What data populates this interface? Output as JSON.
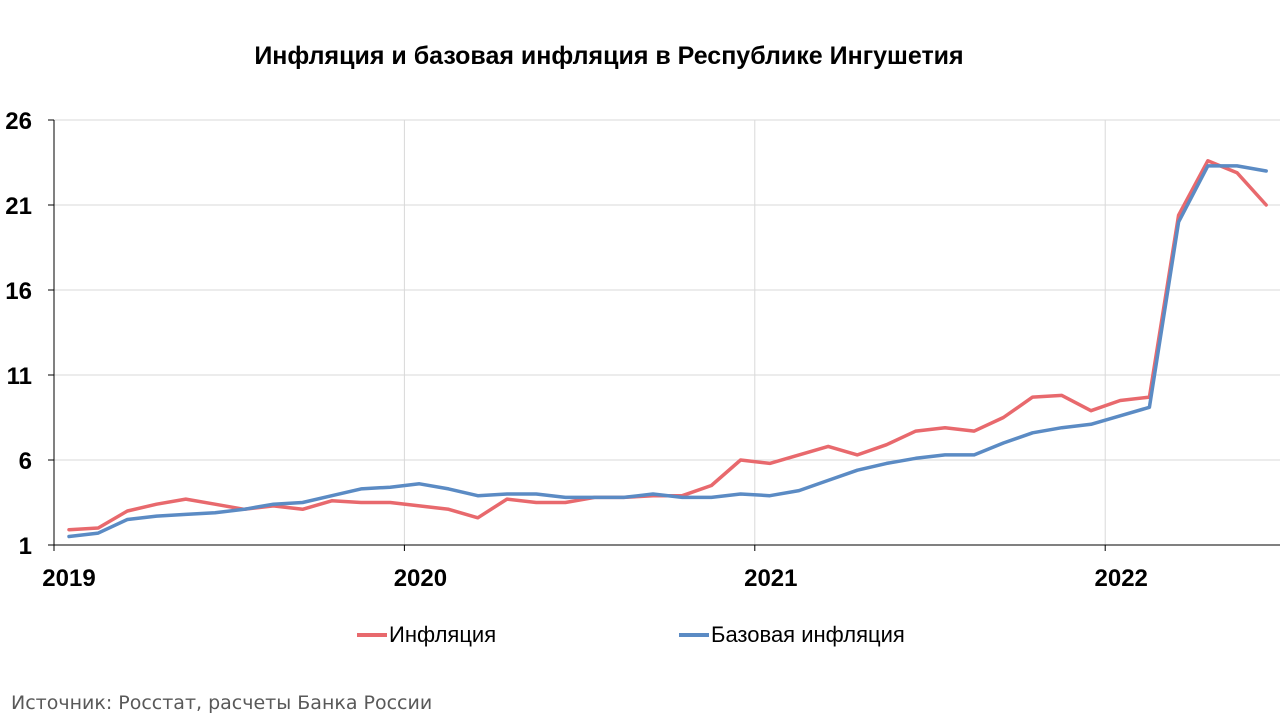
{
  "chart_data": {
    "type": "line",
    "title": "Инфляция и базовая инфляция в Республике Ингушетия",
    "xlabel": "",
    "ylabel": "",
    "ylim": [
      1,
      26
    ],
    "y_ticks": [
      "1",
      "6",
      "11",
      "16",
      "21",
      "26"
    ],
    "x_ticks": [
      "2019",
      "2020",
      "2021",
      "2022"
    ],
    "x_range": [
      "2019-01",
      "2022-07"
    ],
    "grid": true,
    "legend_position": "bottom",
    "x": [
      "2019-01",
      "2019-02",
      "2019-03",
      "2019-04",
      "2019-05",
      "2019-06",
      "2019-07",
      "2019-08",
      "2019-09",
      "2019-10",
      "2019-11",
      "2019-12",
      "2020-01",
      "2020-02",
      "2020-03",
      "2020-04",
      "2020-05",
      "2020-06",
      "2020-07",
      "2020-08",
      "2020-09",
      "2020-10",
      "2020-11",
      "2020-12",
      "2021-01",
      "2021-02",
      "2021-03",
      "2021-04",
      "2021-05",
      "2021-06",
      "2021-07",
      "2021-08",
      "2021-09",
      "2021-10",
      "2021-11",
      "2021-12",
      "2022-01",
      "2022-02",
      "2022-03",
      "2022-04",
      "2022-05",
      "2022-06"
    ],
    "series": [
      {
        "name": "Инфляция",
        "color": "#e8696d",
        "values": [
          1.9,
          2.0,
          3.0,
          3.4,
          3.7,
          3.4,
          3.1,
          3.3,
          3.1,
          3.6,
          3.5,
          3.5,
          3.3,
          3.1,
          2.6,
          3.7,
          3.5,
          3.5,
          3.8,
          3.8,
          3.9,
          3.9,
          4.5,
          6.0,
          5.8,
          6.3,
          6.8,
          6.3,
          6.9,
          7.7,
          7.9,
          7.7,
          8.5,
          9.7,
          9.8,
          8.9,
          9.5,
          9.7,
          20.4,
          23.6,
          22.9,
          21.0
        ]
      },
      {
        "name": "Базовая инфляция",
        "color": "#5b8bc4",
        "values": [
          1.5,
          1.7,
          2.5,
          2.7,
          2.8,
          2.9,
          3.1,
          3.4,
          3.5,
          3.9,
          4.3,
          4.4,
          4.6,
          4.3,
          3.9,
          4.0,
          4.0,
          3.8,
          3.8,
          3.8,
          4.0,
          3.8,
          3.8,
          4.0,
          3.9,
          4.2,
          4.8,
          5.4,
          5.8,
          6.1,
          6.3,
          6.3,
          7.0,
          7.6,
          7.9,
          8.1,
          8.6,
          9.1,
          20.0,
          23.3,
          23.3,
          23.0
        ]
      }
    ]
  },
  "source": "Источник: Росстат, расчеты Банка России"
}
